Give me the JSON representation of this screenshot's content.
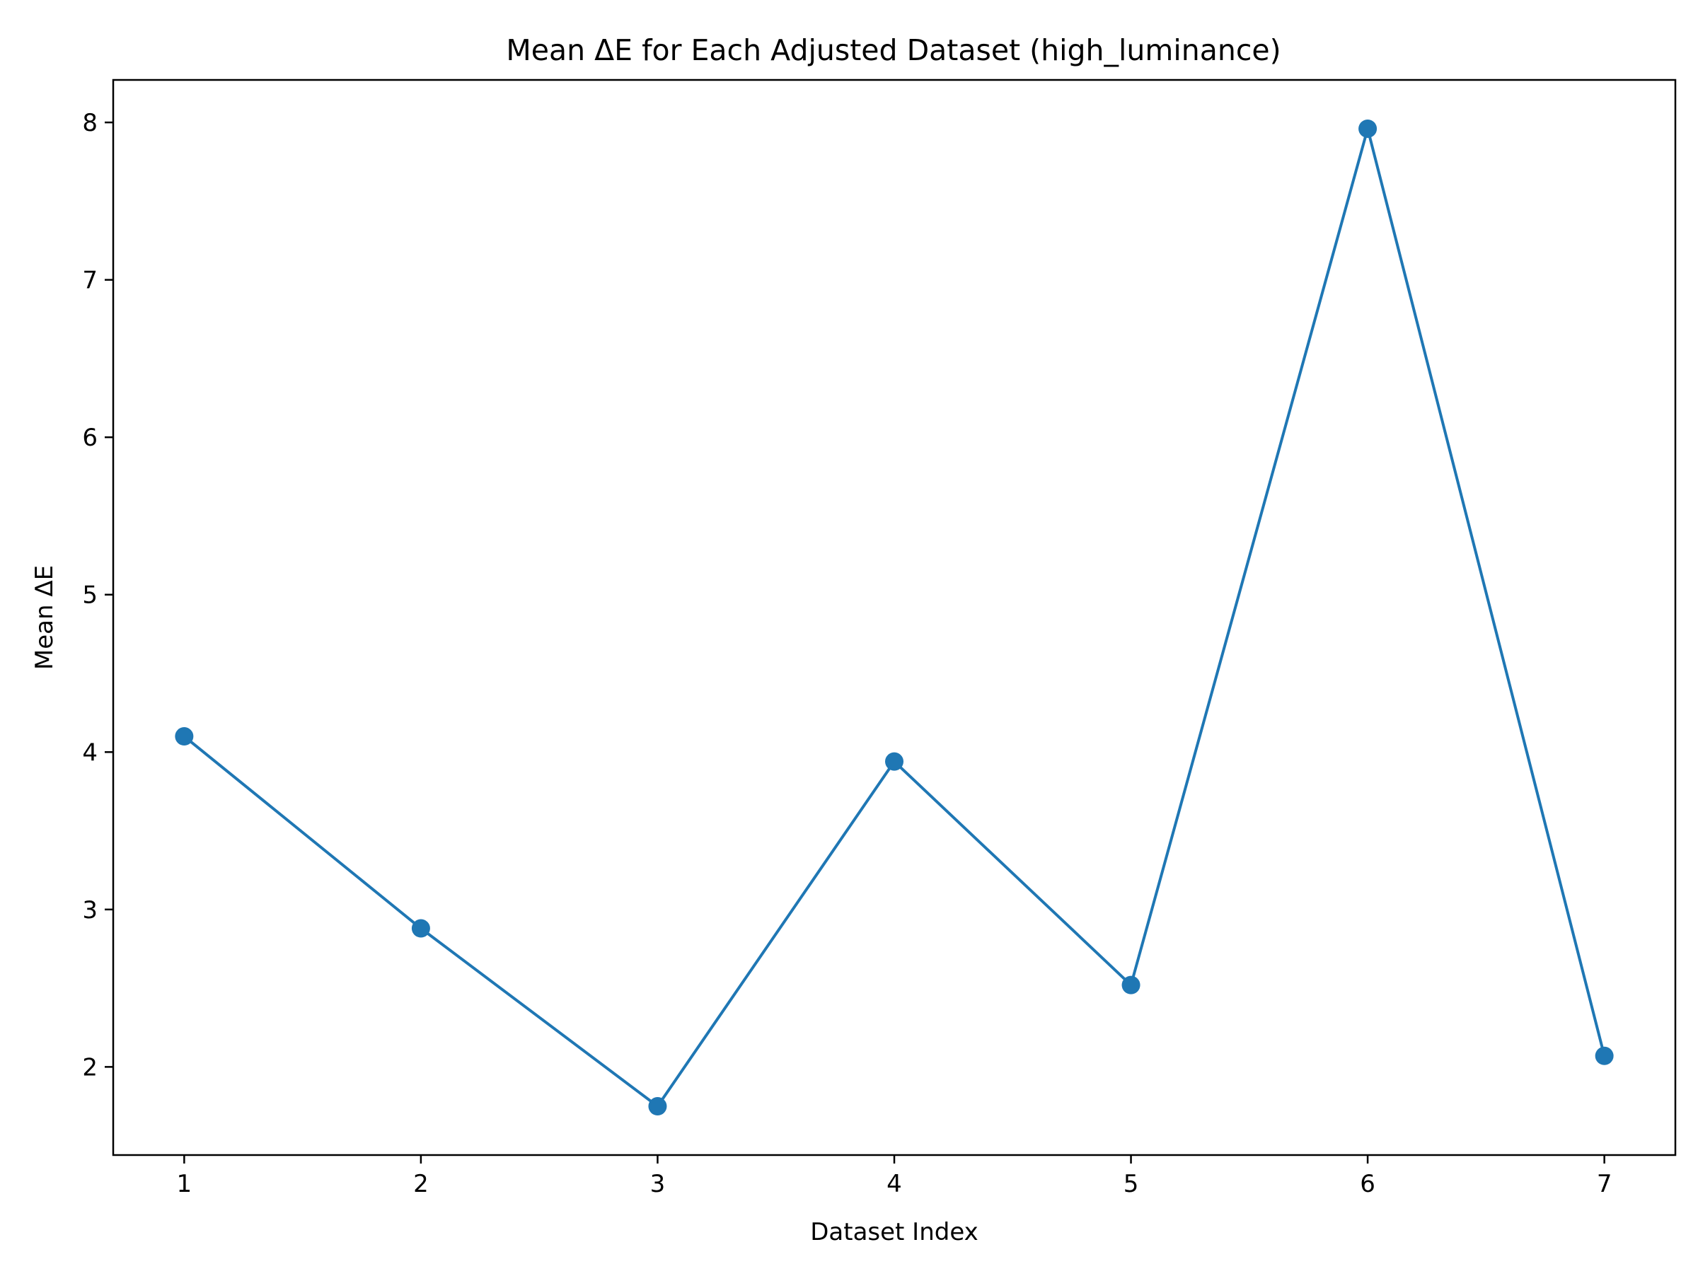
{
  "chart_data": {
    "type": "line",
    "title": "Mean ΔE for Each Adjusted Dataset (high_luminance)",
    "xlabel": "Dataset Index",
    "ylabel": "Mean ΔE",
    "x": [
      1,
      2,
      3,
      4,
      5,
      6,
      7
    ],
    "xticks": [
      "1",
      "2",
      "3",
      "4",
      "5",
      "6",
      "7"
    ],
    "yticks": [
      "2",
      "3",
      "4",
      "5",
      "6",
      "7",
      "8"
    ],
    "xlim": [
      0.7,
      7.3
    ],
    "ylim": [
      1.44,
      8.27
    ],
    "series": [
      {
        "values": [
          4.1,
          2.88,
          1.75,
          3.94,
          2.52,
          7.96,
          2.07
        ],
        "color": "#1f77b4",
        "marker": "circle"
      }
    ],
    "grid": false,
    "legend": "none"
  }
}
